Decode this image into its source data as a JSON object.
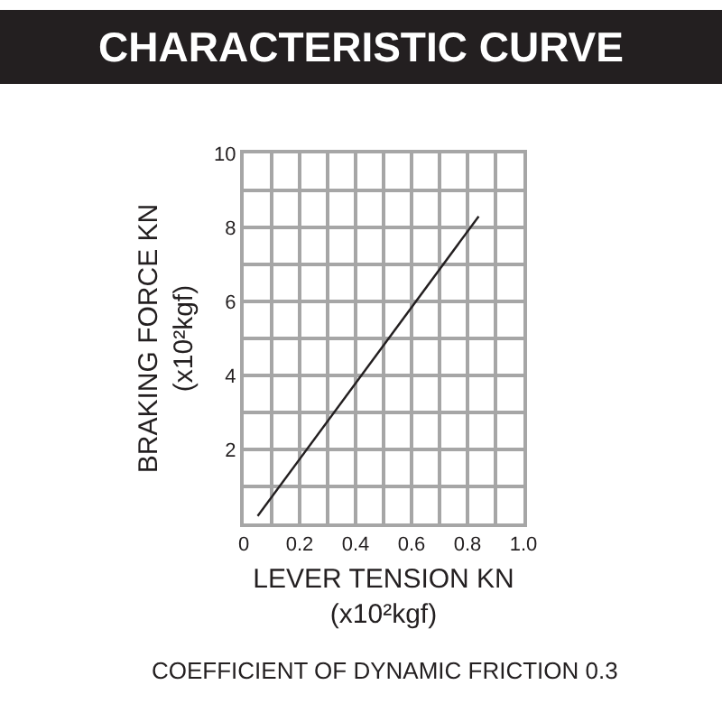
{
  "chart_data": {
    "type": "line",
    "title": "CHARACTERISTIC CURVE",
    "xlabel": "LEVER TENSION KN\n(x10²kgf)",
    "ylabel": "BRAKING FORCE KN\n(x10²kgf)",
    "annotations": [
      "COEFFICIENT OF DYNAMIC FRICTION 0.3"
    ],
    "x": [
      0.05,
      0.84
    ],
    "series": [
      {
        "color": "#231f20",
        "values": [
          0.2,
          8.3
        ]
      }
    ],
    "xlim": [
      0,
      1.0
    ],
    "ylim": [
      0,
      10
    ],
    "xticks": [
      0,
      {
        "value": 0.1,
        "label": null
      },
      0.2,
      {
        "value": 0.3,
        "label": null
      },
      0.4,
      {
        "value": 0.5,
        "label": null
      },
      0.6,
      {
        "value": 0.7,
        "label": null
      },
      0.8,
      {
        "value": 0.9,
        "label": null
      },
      {
        "value": 1.0,
        "label": "1.0"
      }
    ],
    "yticks": [
      {
        "value": 0,
        "label": null
      },
      {
        "value": 1,
        "label": null
      },
      2,
      {
        "value": 3,
        "label": null
      },
      4,
      {
        "value": 5,
        "label": null
      },
      6,
      {
        "value": 7,
        "label": null
      },
      8,
      {
        "value": 9,
        "label": null
      },
      10
    ],
    "grid": true
  }
}
